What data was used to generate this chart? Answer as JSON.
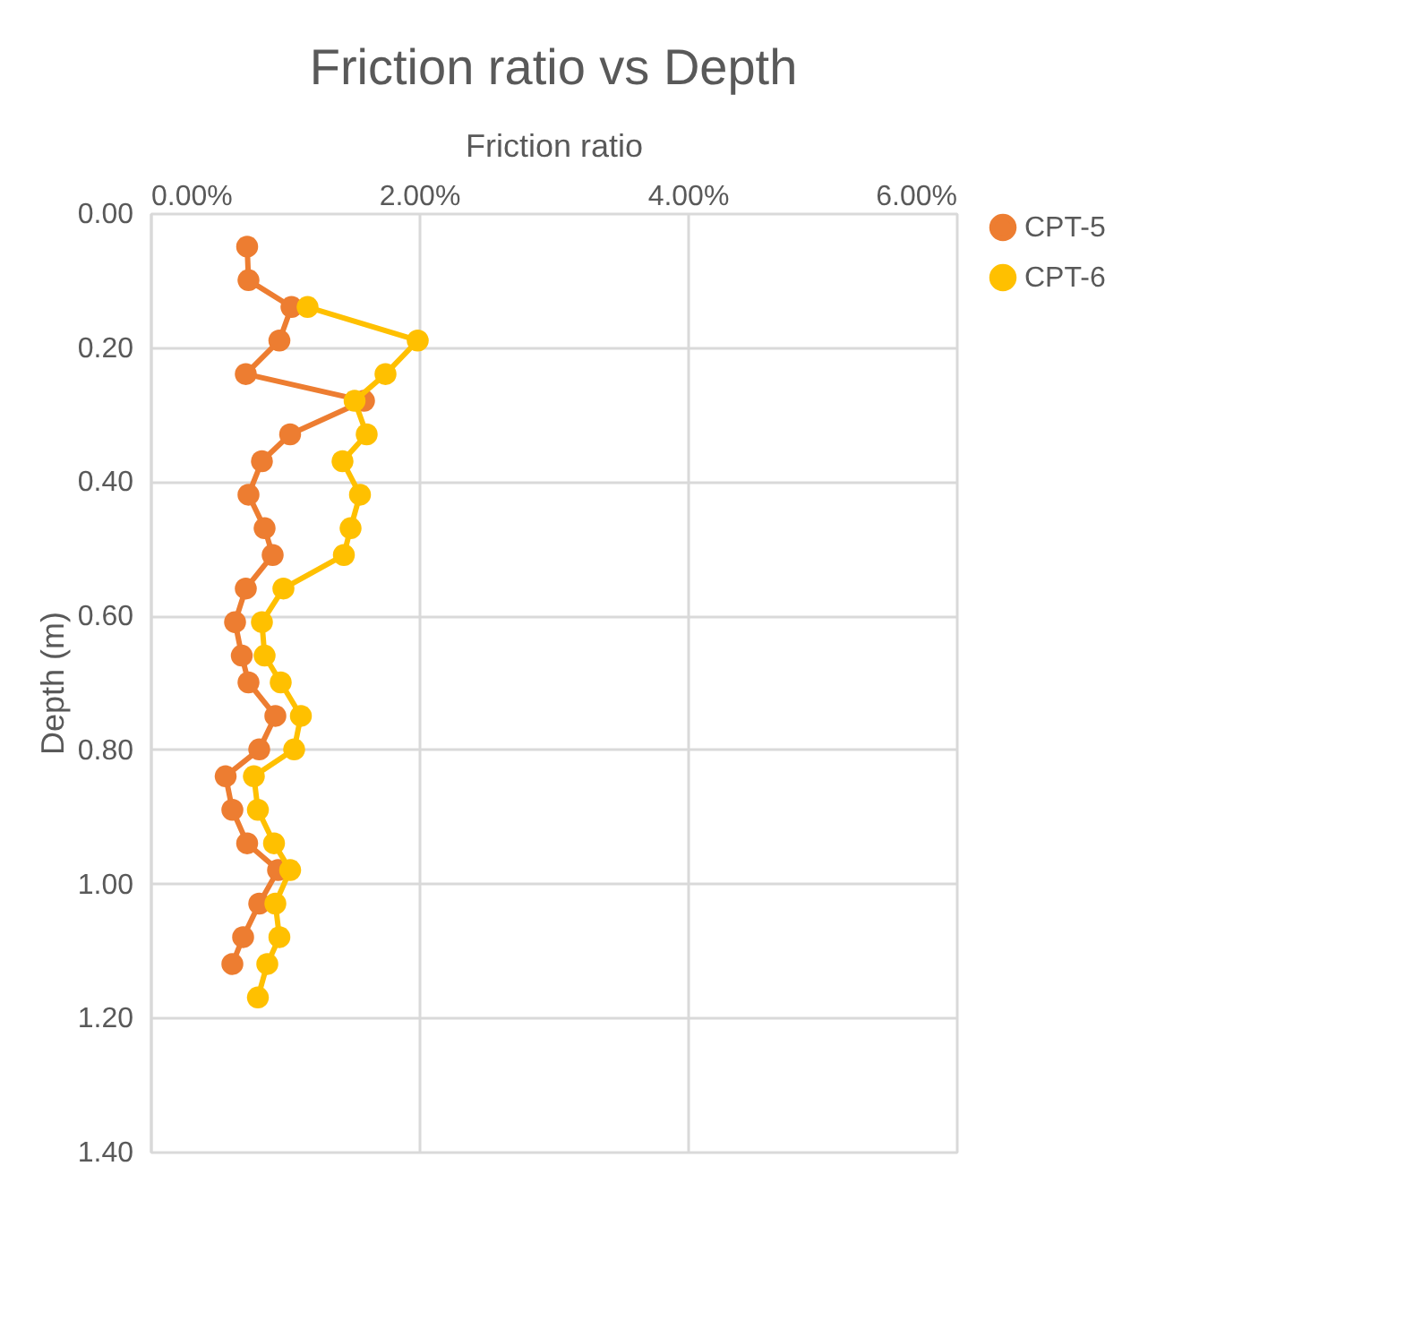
{
  "chart_data": {
    "type": "line",
    "title": "Friction ratio vs Depth",
    "xlabel": "Friction ratio",
    "ylabel": "Depth (m)",
    "xlim": [
      0,
      6
    ],
    "xticks": [
      {
        "value": 0,
        "label": "0.00%"
      },
      {
        "value": 2,
        "label": "2.00%"
      },
      {
        "value": 4,
        "label": "4.00%"
      },
      {
        "value": 6,
        "label": "6.00%"
      }
    ],
    "ylim": [
      1.4,
      0
    ],
    "yticks": [
      {
        "value": 0,
        "label": "0.00"
      },
      {
        "value": 0.2,
        "label": "0.20"
      },
      {
        "value": 0.4,
        "label": "0.40"
      },
      {
        "value": 0.6,
        "label": "0.60"
      },
      {
        "value": 0.8,
        "label": "0.80"
      },
      {
        "value": 1.0,
        "label": "1.00"
      },
      {
        "value": 1.2,
        "label": "1.20"
      },
      {
        "value": 1.4,
        "label": "1.40"
      }
    ],
    "grid": true,
    "legend": "right",
    "marker": "circle",
    "line_style": "solid",
    "series": [
      {
        "name": "CPT-5",
        "color": "#ed7d31",
        "x": [
          0.72,
          0.73,
          1.05,
          0.96,
          0.71,
          1.59,
          1.04,
          0.83,
          0.73,
          0.85,
          0.91,
          0.71,
          0.63,
          0.68,
          0.73,
          0.93,
          0.81,
          0.56,
          0.61,
          0.72,
          0.95,
          0.81,
          0.69,
          0.61
        ],
        "values": [
          0.05,
          0.1,
          0.14,
          0.19,
          0.24,
          0.28,
          0.33,
          0.37,
          0.42,
          0.47,
          0.51,
          0.56,
          0.61,
          0.66,
          0.7,
          0.75,
          0.8,
          0.84,
          0.89,
          0.94,
          0.98,
          1.03,
          1.08,
          1.12
        ]
      },
      {
        "name": "CPT-6",
        "color": "#ffc000",
        "x": [
          1.17,
          1.99,
          1.75,
          1.52,
          1.61,
          1.43,
          1.56,
          1.49,
          1.44,
          0.99,
          0.83,
          0.85,
          0.97,
          1.12,
          1.07,
          0.77,
          0.8,
          0.92,
          1.04,
          0.93,
          0.96,
          0.87,
          0.8
        ],
        "values": [
          0.14,
          0.19,
          0.24,
          0.28,
          0.33,
          0.37,
          0.42,
          0.47,
          0.51,
          0.56,
          0.61,
          0.66,
          0.7,
          0.75,
          0.8,
          0.84,
          0.89,
          0.94,
          0.98,
          1.03,
          1.08,
          1.12,
          1.17
        ]
      }
    ]
  }
}
